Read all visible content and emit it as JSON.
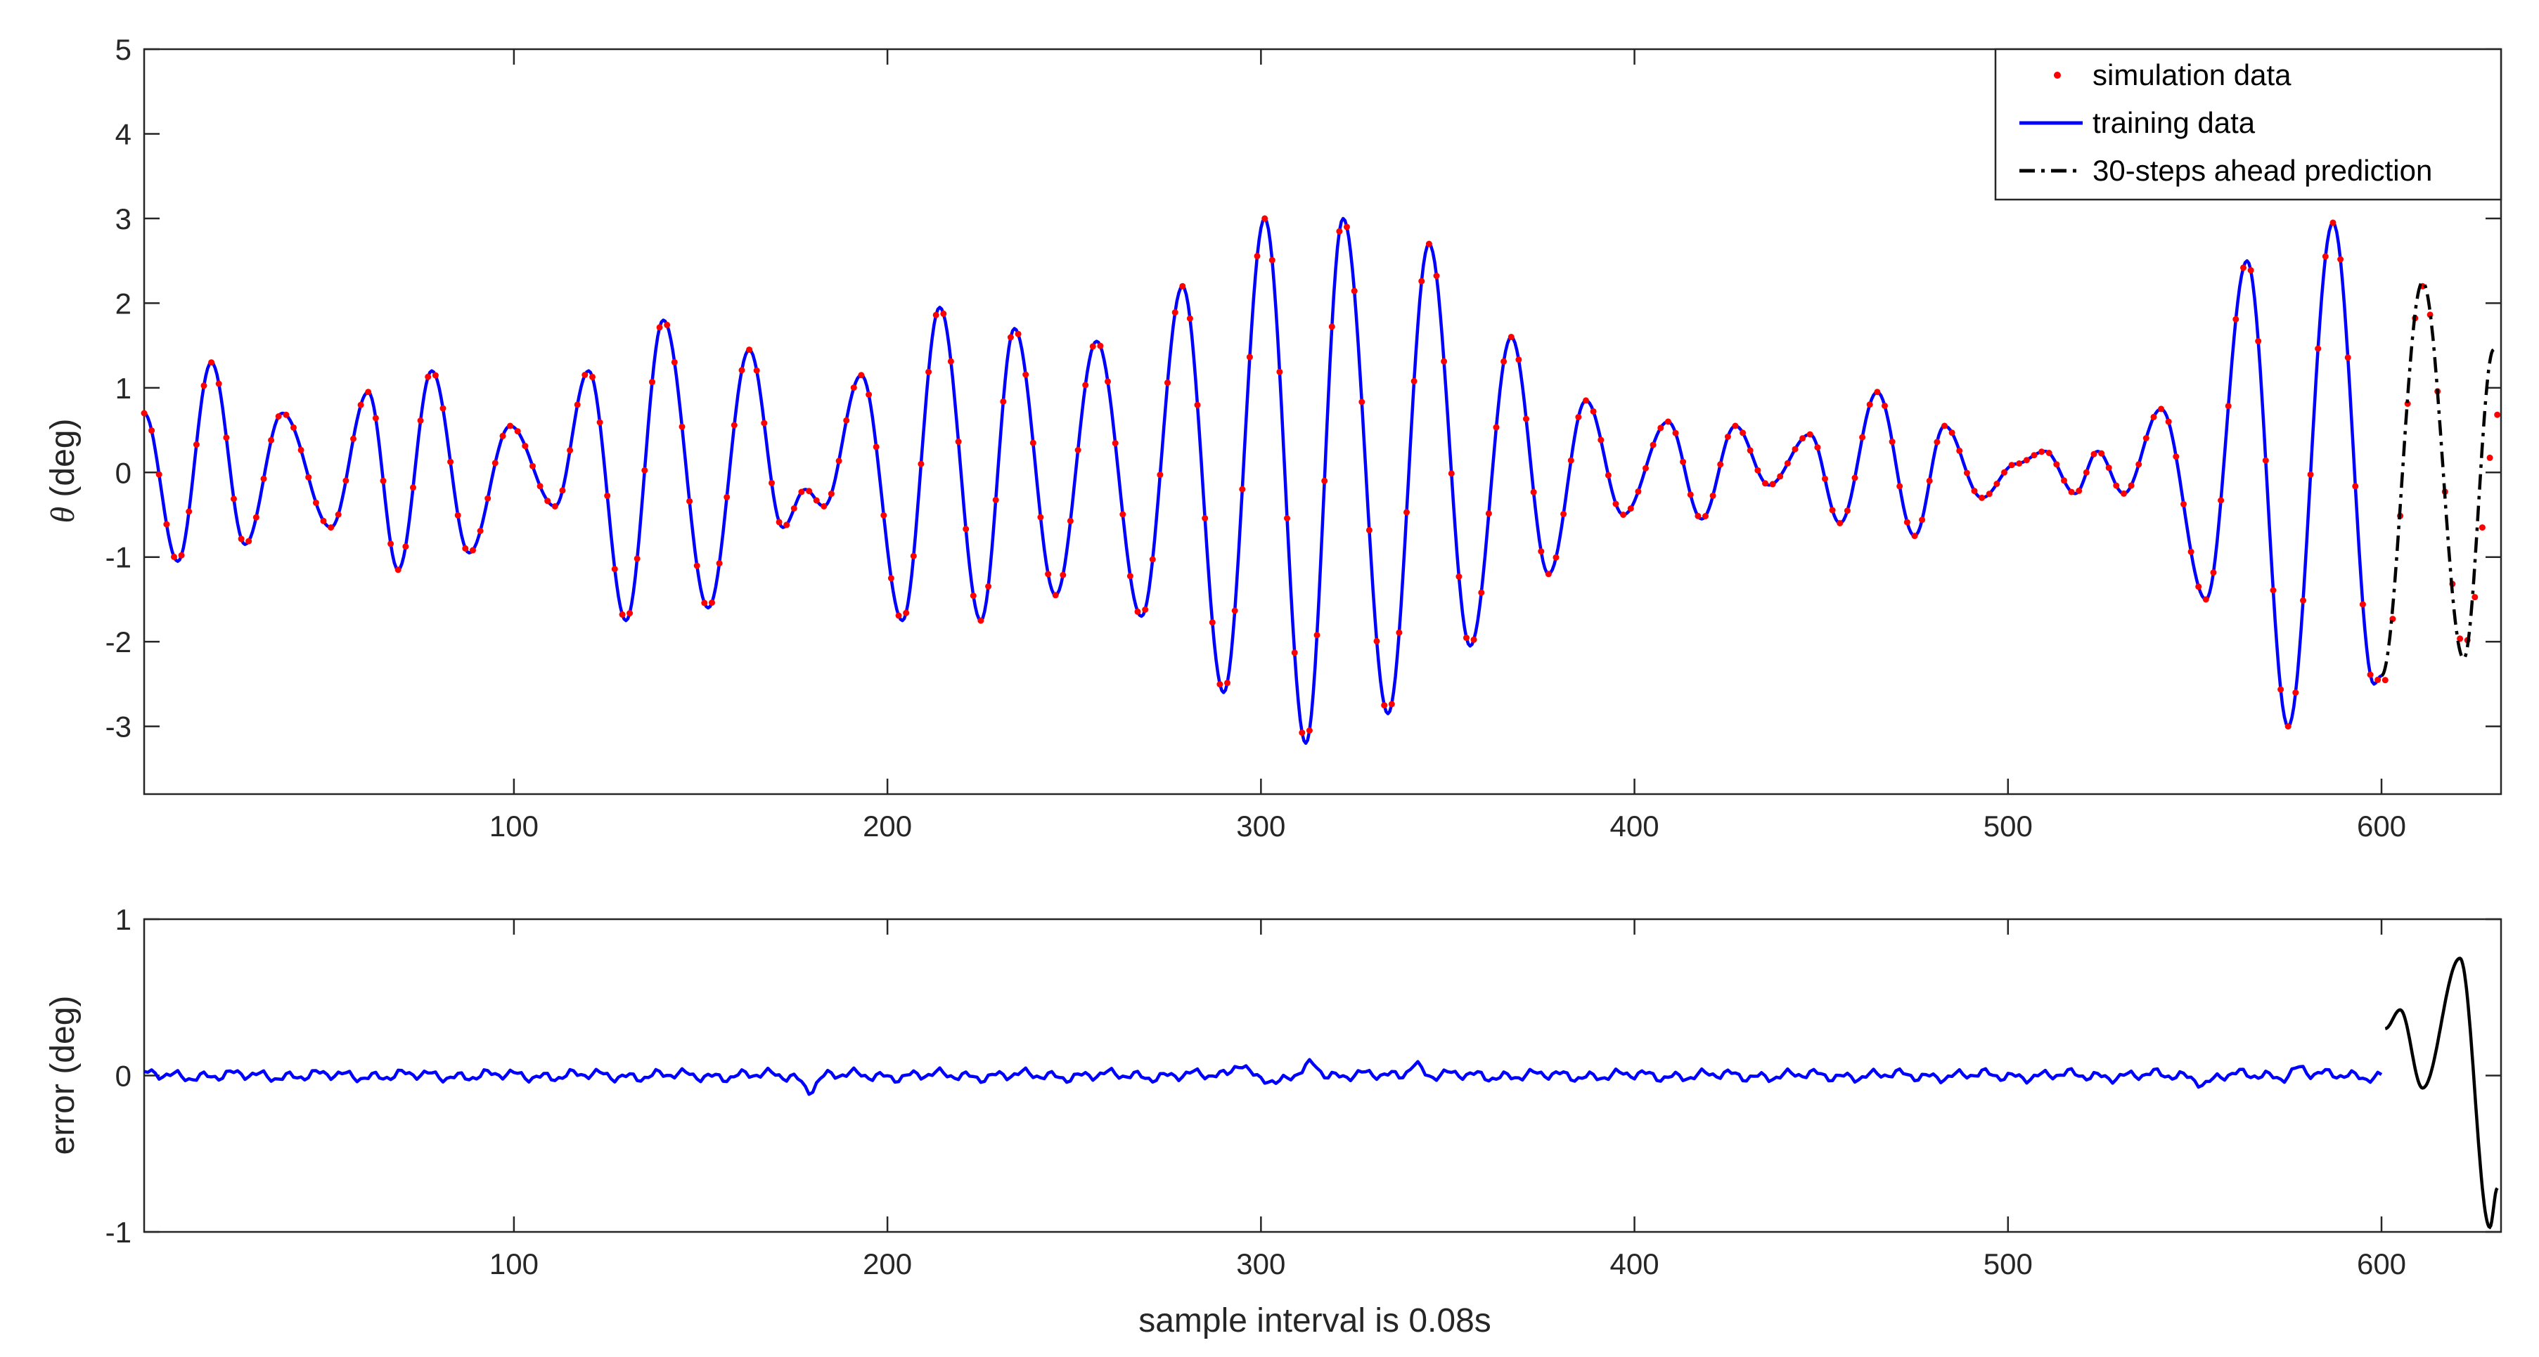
{
  "chart_data": [
    {
      "type": "line",
      "panel": "top",
      "title": "",
      "xlabel": "",
      "ylabel": "θ (deg)",
      "ylabel_symbol": "θ",
      "ylabel_unit": " (deg)",
      "xlim": [
        1,
        632
      ],
      "ylim": [
        -3.8,
        5
      ],
      "xticks": [
        100,
        200,
        300,
        400,
        500,
        600
      ],
      "yticks": [
        -3,
        -2,
        -1,
        0,
        1,
        2,
        3,
        4,
        5
      ],
      "grid": false,
      "legend_position": "top-right",
      "legend": [
        "simulation data",
        "training data",
        "30-steps ahead prediction"
      ],
      "training_peaks": [
        [
          1,
          0.7
        ],
        [
          10,
          -1.05
        ],
        [
          19,
          1.3
        ],
        [
          28,
          -0.85
        ],
        [
          38,
          0.7
        ],
        [
          51,
          -0.65
        ],
        [
          61,
          0.95
        ],
        [
          69,
          -1.15
        ],
        [
          78,
          1.2
        ],
        [
          88,
          -0.95
        ],
        [
          99,
          0.55
        ],
        [
          111,
          -0.4
        ],
        [
          120,
          1.2
        ],
        [
          130,
          -1.75
        ],
        [
          140,
          1.8
        ],
        [
          152,
          -1.6
        ],
        [
          163,
          1.45
        ],
        [
          172,
          -0.65
        ],
        [
          178,
          -0.2
        ],
        [
          183,
          -0.4
        ],
        [
          193,
          1.15
        ],
        [
          204,
          -1.75
        ],
        [
          214,
          1.95
        ],
        [
          225,
          -1.75
        ],
        [
          234,
          1.7
        ],
        [
          245,
          -1.45
        ],
        [
          256,
          1.55
        ],
        [
          268,
          -1.7
        ],
        [
          279,
          2.2
        ],
        [
          290,
          -2.6
        ],
        [
          301,
          3.0
        ],
        [
          312,
          -3.2
        ],
        [
          322,
          3.0
        ],
        [
          334,
          -2.85
        ],
        [
          345,
          2.7
        ],
        [
          356,
          -2.05
        ],
        [
          367,
          1.6
        ],
        [
          377,
          -1.2
        ],
        [
          387,
          0.85
        ],
        [
          397,
          -0.5
        ],
        [
          409,
          0.6
        ],
        [
          418,
          -0.55
        ],
        [
          427,
          0.55
        ],
        [
          436,
          -0.15
        ],
        [
          447,
          0.45
        ],
        [
          455,
          -0.6
        ],
        [
          465,
          0.95
        ],
        [
          475,
          -0.75
        ],
        [
          483,
          0.55
        ],
        [
          493,
          -0.3
        ],
        [
          502,
          0.1
        ],
        [
          510,
          0.25
        ],
        [
          518,
          -0.25
        ],
        [
          524,
          0.25
        ],
        [
          531,
          -0.25
        ],
        [
          541,
          0.75
        ],
        [
          553,
          -1.5
        ],
        [
          564,
          2.5
        ],
        [
          575,
          -3.0
        ],
        [
          587,
          2.95
        ],
        [
          598,
          -2.5
        ],
        [
          600,
          -2.4
        ]
      ],
      "prediction_peaks": [
        [
          600,
          -2.4
        ],
        [
          611,
          2.25
        ],
        [
          622,
          -2.2
        ],
        [
          630,
          1.45
        ]
      ],
      "simulation_tail": [
        [
          600,
          -2.55
        ],
        [
          611,
          2.2
        ],
        [
          622,
          -2.05
        ],
        [
          632,
          0.75
        ]
      ],
      "series": [
        {
          "name": "simulation data",
          "style": "red dots",
          "color": "#ff0000",
          "x_range": [
            1,
            632
          ]
        },
        {
          "name": "training data",
          "style": "blue solid line",
          "color": "#0000ff",
          "x_range": [
            1,
            600
          ]
        },
        {
          "name": "30-steps ahead prediction",
          "style": "black dash-dot line",
          "color": "#000000",
          "x_range": [
            600,
            630
          ]
        }
      ]
    },
    {
      "type": "line",
      "panel": "bottom",
      "title": "",
      "xlabel": "sample interval is 0.08s",
      "ylabel": "error (deg)",
      "xlim": [
        1,
        632
      ],
      "ylim": [
        -1,
        1
      ],
      "xticks": [
        100,
        200,
        300,
        400,
        500,
        600
      ],
      "yticks": [
        -1,
        0,
        1
      ],
      "grid": false,
      "training_error_amplitude": 0.05,
      "training_error_spikes": [
        [
          179,
          -0.08
        ],
        [
          294,
          0.09
        ],
        [
          304,
          -0.07
        ],
        [
          314,
          0.09
        ],
        [
          341,
          0.08
        ],
        [
          553,
          -0.05
        ],
        [
          578,
          0.05
        ]
      ],
      "prediction_error_peaks": [
        [
          601,
          0.3
        ],
        [
          605,
          0.42
        ],
        [
          611,
          -0.08
        ],
        [
          621,
          0.75
        ],
        [
          629,
          -0.97
        ],
        [
          631,
          -0.72
        ]
      ],
      "series": [
        {
          "name": "",
          "style": "blue solid line",
          "color": "#0000ff",
          "x_range": [
            1,
            600
          ]
        },
        {
          "name": "",
          "style": "black solid line",
          "color": "#000000",
          "x_range": [
            600,
            631
          ]
        }
      ]
    }
  ],
  "colors": {
    "axes": "#262626",
    "simulation": "#ff0000",
    "training": "#0000ff",
    "prediction": "#000000"
  }
}
